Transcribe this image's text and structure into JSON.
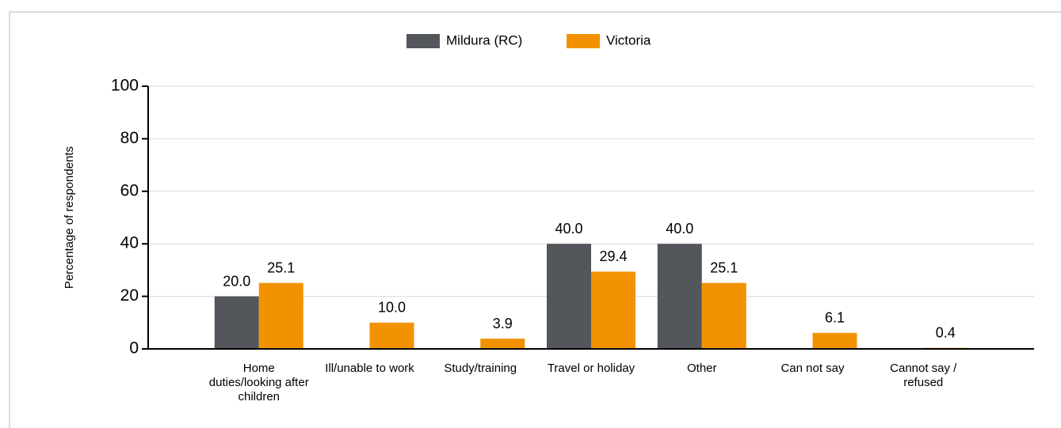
{
  "chart_data": {
    "type": "bar",
    "y_label": "Percentage of respondents",
    "categories": [
      "Home duties/looking after children",
      "Ill/unable to work",
      "Study/training",
      "Travel or holiday",
      "Other",
      "Can not say",
      "Cannot say / refused"
    ],
    "series": [
      {
        "name": "Mildura (RC)",
        "color": "#53565a",
        "values": [
          20,
          null,
          null,
          40,
          40,
          null,
          null
        ],
        "value_labels": [
          "20.0",
          null,
          null,
          "40.0",
          "40.0",
          null,
          null
        ]
      },
      {
        "name": "Victoria",
        "color": "#f39200",
        "values": [
          25.1,
          10,
          3.9,
          29.4,
          25.1,
          6.1,
          0.4
        ],
        "value_labels": [
          "25.1",
          "10.0",
          "3.9",
          "29.4",
          "25.1",
          "6.1",
          "0.4"
        ]
      }
    ],
    "ylim": [
      0,
      100
    ],
    "yticks": [
      0,
      20,
      40,
      60,
      80,
      100
    ],
    "grid": true,
    "legend": "top"
  }
}
